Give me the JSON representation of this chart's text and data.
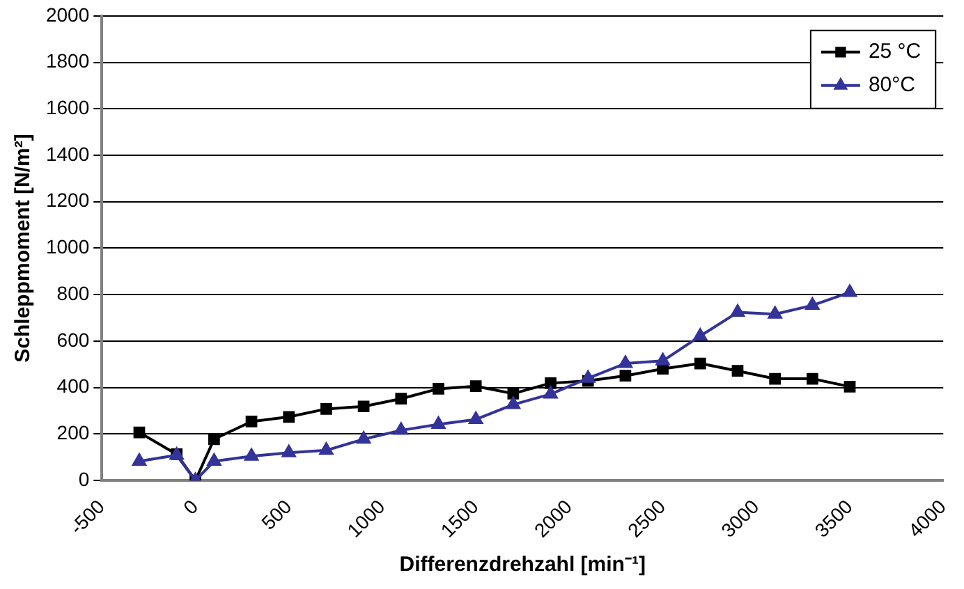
{
  "chart_data": {
    "type": "line",
    "xlabel": "Differenzdrehzahl [min⁻¹]",
    "ylabel": "Schleppmoment [N/m²]",
    "xlim": [
      -500,
      4000
    ],
    "xticks": [
      -500,
      0,
      500,
      1000,
      1500,
      2000,
      2500,
      3000,
      3500,
      4000
    ],
    "ylim": [
      0,
      2000
    ],
    "yticks": [
      0,
      200,
      400,
      600,
      800,
      1000,
      1200,
      1400,
      1600,
      1800,
      2000
    ],
    "grid": "y",
    "legend": "top right",
    "line_style": "solid",
    "x": [
      -300,
      -100,
      0,
      100,
      300,
      500,
      700,
      900,
      1100,
      1300,
      1500,
      1700,
      1900,
      2100,
      2300,
      2500,
      2700,
      2900,
      3100,
      3300,
      3500
    ],
    "series": [
      {
        "name": "25 °C",
        "color": "#000000",
        "marker": "square",
        "values": [
          207,
          113,
          0,
          178,
          254,
          274,
          308,
          319,
          352,
          395,
          406,
          374,
          419,
          429,
          451,
          481,
          504,
          472,
          438,
          438,
          404
        ]
      },
      {
        "name": "80°C",
        "color": "#333399",
        "marker": "triangle",
        "values": [
          83,
          109,
          0,
          83,
          105,
          120,
          130,
          178,
          216,
          242,
          263,
          327,
          372,
          440,
          504,
          515,
          622,
          724,
          716,
          754,
          810
        ]
      }
    ]
  }
}
